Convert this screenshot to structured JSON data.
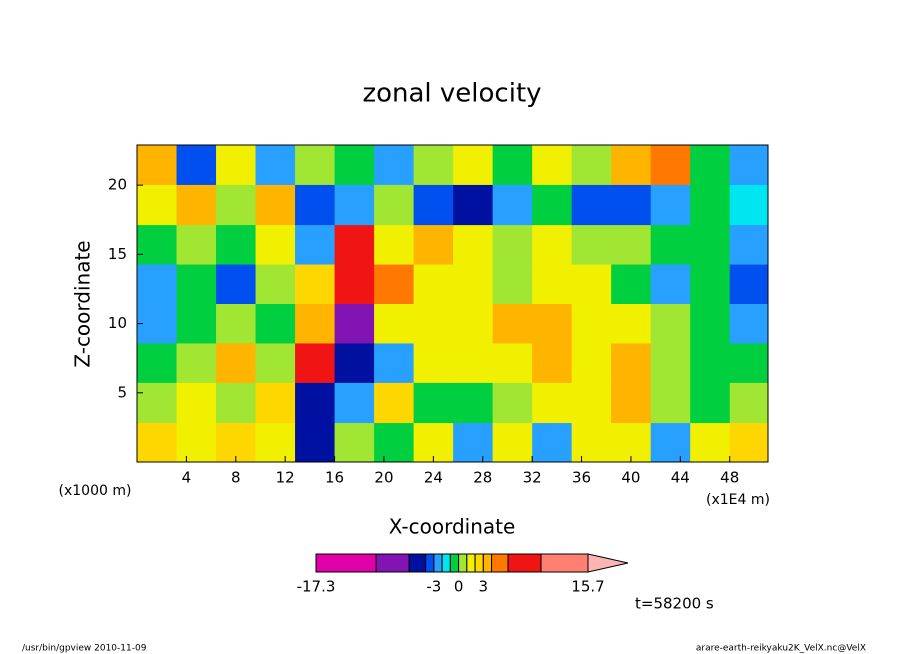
{
  "chart_data": {
    "type": "contour",
    "title": "zonal velocity",
    "xlabel": "X-coordinate",
    "ylabel": "Z-coordinate",
    "x_unit": "(x1E4 m)",
    "y_unit": "(x1000 m)",
    "annotation": "t=58200 s",
    "footer_left": "/usr/bin/gpview  2010-11-09",
    "footer_right": "arare-earth-reikyaku2K_VelX.nc@VelX",
    "xlim": [
      0,
      51.1
    ],
    "ylim": [
      0,
      22.9
    ],
    "xticks": [
      4,
      8,
      12,
      16,
      20,
      24,
      28,
      32,
      36,
      40,
      44,
      48
    ],
    "yticks": [
      5,
      10,
      15,
      20
    ],
    "x": [
      1.6,
      4.8,
      8.0,
      11.2,
      14.4,
      17.6,
      20.8,
      24.0,
      27.2,
      30.4,
      33.6,
      36.8,
      40.0,
      43.2,
      46.4,
      49.6
    ],
    "y": [
      1.4,
      4.3,
      7.2,
      10.0,
      12.9,
      15.7,
      18.6,
      21.5
    ],
    "z": [
      [
        2.5,
        1.5,
        2,
        1.5,
        -5,
        0.5,
        -1,
        1.5,
        -2.5,
        1.5,
        -2.5,
        1.5,
        1.5,
        -2.5,
        1.5,
        2.5
      ],
      [
        0.5,
        1.5,
        0.5,
        2.5,
        -6,
        -3,
        2.5,
        -0.5,
        -0.5,
        0.5,
        1.5,
        1.5,
        3.5,
        0.5,
        -0.5,
        0.5
      ],
      [
        -0.5,
        0.5,
        3.5,
        0.5,
        8,
        -5,
        -3,
        1.5,
        1.5,
        1.5,
        3.5,
        1.5,
        3.5,
        0.5,
        -0.5,
        -0.5
      ],
      [
        -2.5,
        -0.5,
        0.5,
        -0.5,
        3.5,
        -8,
        1.5,
        1.5,
        1.5,
        3.5,
        3.5,
        1.5,
        1.5,
        0.5,
        -0.5,
        -2.5
      ],
      [
        -2.5,
        -0.5,
        -4,
        0.5,
        2.5,
        8,
        4,
        1.5,
        1.5,
        0.5,
        1.5,
        1.5,
        -0.5,
        -2.5,
        -0.5,
        -4
      ],
      [
        -0.5,
        0.5,
        -0.5,
        1.5,
        -3,
        6,
        1.5,
        3.5,
        1.5,
        0.5,
        1.5,
        0.5,
        0.5,
        -0.5,
        -0.5,
        -2.5
      ],
      [
        1.5,
        3.5,
        0.5,
        3.5,
        -4,
        -2.5,
        0.5,
        -4,
        -5,
        -2.5,
        -0.5,
        -4,
        -4,
        -2.5,
        -0.5,
        -1.5
      ],
      [
        3.5,
        -4,
        1.5,
        -2.5,
        0.5,
        -0.5,
        -2.5,
        0.5,
        1.5,
        -0.5,
        1.5,
        0.5,
        3.5,
        4.5,
        -0.5,
        -2.5
      ]
    ],
    "colorbar": {
      "levels": [
        -17.3,
        -10,
        -6,
        -4,
        -3,
        -2,
        -1,
        0,
        1,
        2,
        3,
        4,
        6,
        10,
        15.7
      ],
      "colors": [
        "#e000a8",
        "#8214b4",
        "#0010a0",
        "#0050f0",
        "#28a0ff",
        "#00e6f0",
        "#00d040",
        "#a0e632",
        "#f0f000",
        "#ffd700",
        "#ffb400",
        "#ff7800",
        "#f01414",
        "#ff8070"
      ],
      "extend_color": "#ffb4b4",
      "ticks": [
        -17.3,
        -3,
        0,
        3,
        15.7
      ]
    }
  }
}
